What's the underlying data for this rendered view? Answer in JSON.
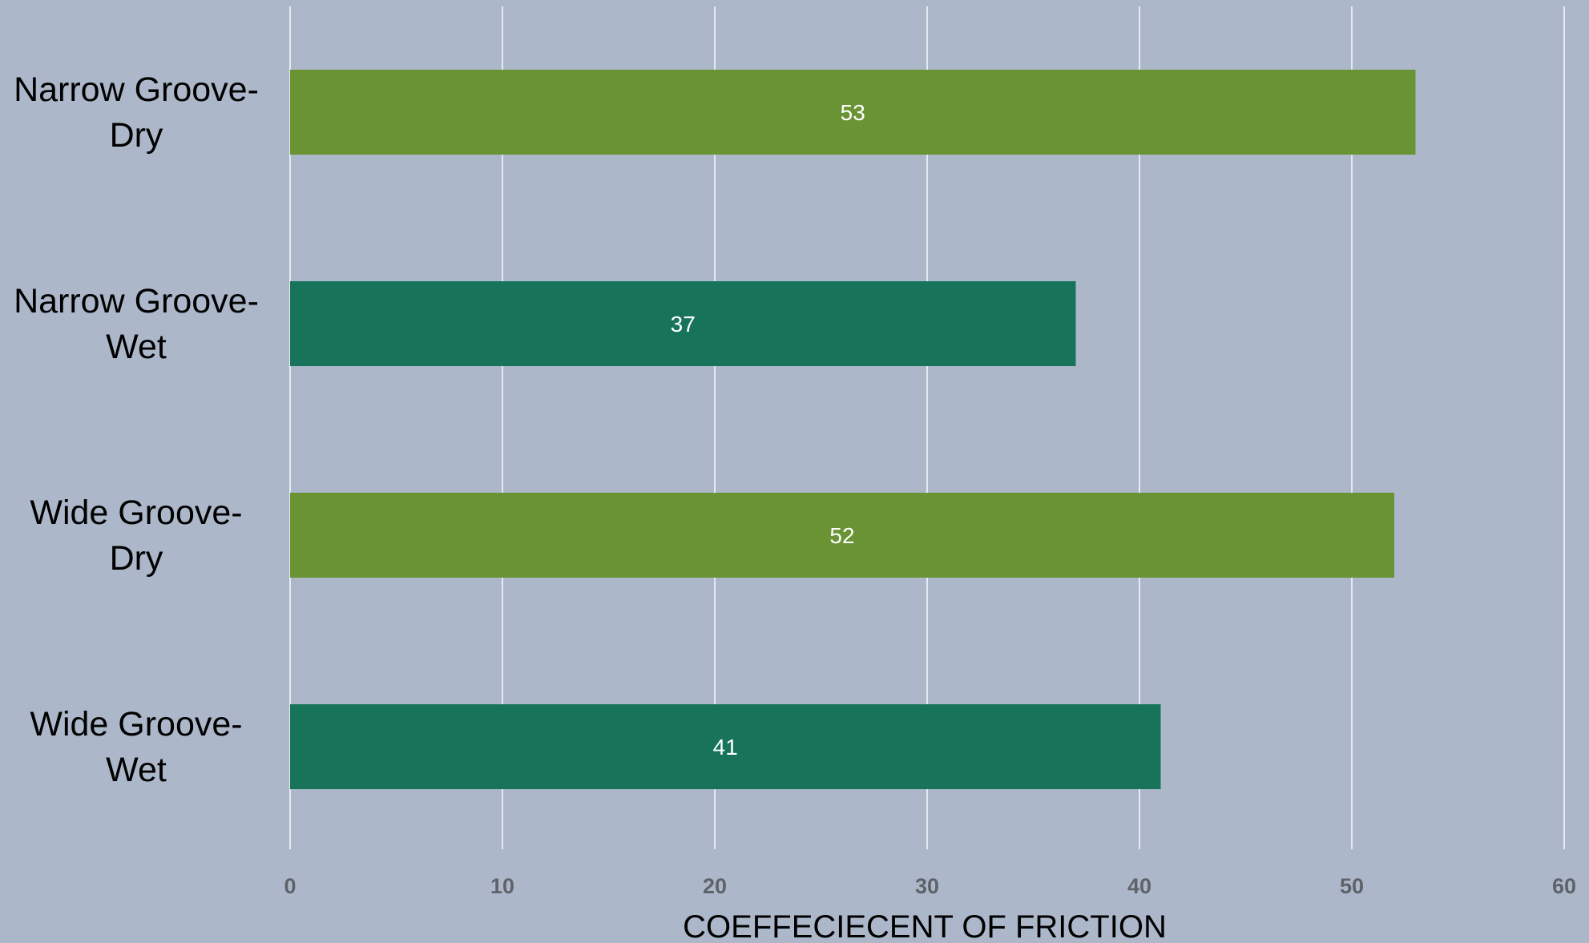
{
  "chart_data": {
    "type": "bar",
    "orientation": "horizontal",
    "categories": [
      [
        "Narrow Groove-",
        "Dry"
      ],
      [
        "Narrow Groove-",
        "Wet"
      ],
      [
        "Wide Groove-",
        "Dry"
      ],
      [
        "Wide Groove-",
        "Wet"
      ]
    ],
    "values": [
      53,
      37,
      52,
      41
    ],
    "bar_colors": [
      "#6a9334",
      "#17745a",
      "#6a9334",
      "#17745a"
    ],
    "data_labels": [
      "53",
      "37",
      "52",
      "41"
    ],
    "xlabel": "COEFFECIECENT OF FRICTION",
    "ylabel": "",
    "title": "",
    "xlim": [
      0,
      60
    ],
    "x_ticks": [
      0,
      10,
      20,
      30,
      40,
      50,
      60
    ],
    "x_tick_labels": [
      "0",
      "10",
      "20",
      "30",
      "40",
      "50",
      "60"
    ],
    "grid": "vertical",
    "legend": "none"
  },
  "colors": {
    "background": "#acb8ca",
    "gridline": "#e6eaf0",
    "data_label": "#ffffff",
    "tick_label": "#5f6369",
    "text": "#000000"
  }
}
